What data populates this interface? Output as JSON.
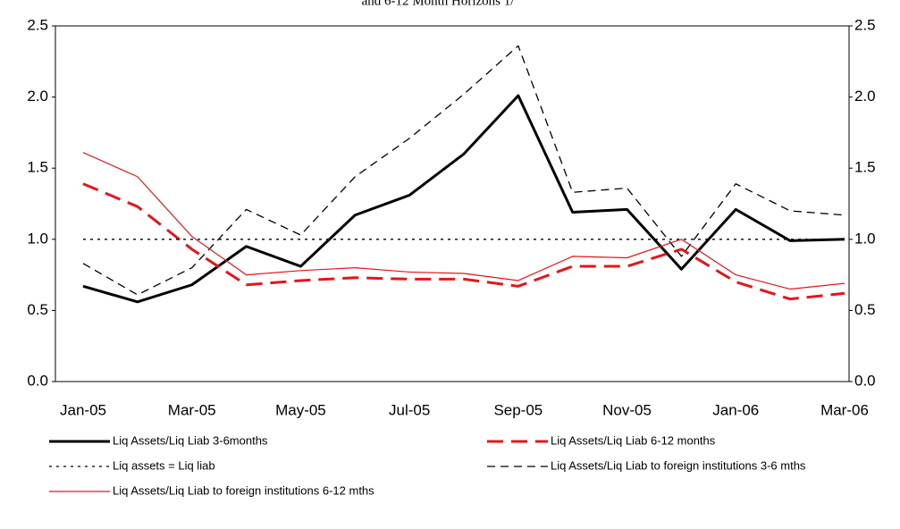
{
  "chart_data": {
    "type": "line",
    "title": "and 6-12 Month Horizons 1/",
    "categories": [
      "Jan-05",
      null,
      "Mar-05",
      null,
      "May-05",
      null,
      "Jul-05",
      null,
      "Sep-05",
      null,
      "Nov-05",
      null,
      "Jan-06",
      null,
      "Mar-06"
    ],
    "series": [
      {
        "name": "Liq Assets/Liq Liab 3-6months",
        "color": "#000000",
        "style": "thick",
        "values": [
          0.67,
          0.56,
          0.68,
          0.95,
          0.81,
          1.17,
          1.31,
          1.6,
          2.01,
          1.19,
          1.21,
          0.79,
          1.21,
          0.99,
          1.0
        ]
      },
      {
        "name": "Liq Assets/Liq Liab 6-12 months",
        "color": "#e8141a",
        "style": "long-dash",
        "values": [
          1.39,
          1.23,
          0.93,
          0.68,
          0.71,
          0.73,
          0.72,
          0.72,
          0.67,
          0.81,
          0.81,
          0.93,
          0.7,
          0.58,
          0.62
        ]
      },
      {
        "name": "Liq assets = Liq liab",
        "color": "#000000",
        "style": "dotted",
        "values": [
          1,
          1,
          1,
          1,
          1,
          1,
          1,
          1,
          1,
          1,
          1,
          1,
          1,
          1,
          1
        ]
      },
      {
        "name": "Liq Assets/Liq Liab to foreign institutions 3-6 mths",
        "color": "#000000",
        "style": "dashed",
        "values": [
          0.83,
          0.61,
          0.8,
          1.21,
          1.03,
          1.44,
          1.71,
          2.02,
          2.36,
          1.33,
          1.36,
          0.88,
          1.39,
          1.2,
          1.17
        ]
      },
      {
        "name": "Liq Assets/Liq Liab to foreign institutions 6-12 mths",
        "color": "#e8141a",
        "style": "thin",
        "values": [
          1.61,
          1.44,
          1.02,
          0.75,
          0.78,
          0.8,
          0.77,
          0.76,
          0.71,
          0.88,
          0.87,
          1.0,
          0.75,
          0.65,
          0.69
        ]
      }
    ],
    "ylim": [
      0,
      2.5
    ],
    "yticks": [
      {
        "value": 0,
        "label": "0.0"
      },
      {
        "value": 0.5,
        "label": "0.5"
      },
      {
        "value": 1,
        "label": "1.0"
      },
      {
        "value": 1.5,
        "label": "1.5"
      },
      {
        "value": 2,
        "label": "2.0"
      },
      {
        "value": 2.5,
        "label": "2.5"
      }
    ],
    "y2lim": [
      0,
      2.5
    ],
    "y2ticks": [
      {
        "value": 0,
        "label": "0.0"
      },
      {
        "value": 0.5,
        "label": "0.5"
      },
      {
        "value": 1,
        "label": "1.0"
      },
      {
        "value": 1.5,
        "label": "1.5"
      },
      {
        "value": 2,
        "label": "2.0"
      },
      {
        "value": 2.5,
        "label": "2.5"
      }
    ],
    "grid": false
  }
}
